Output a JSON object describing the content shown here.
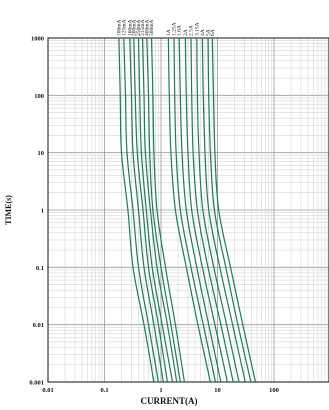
{
  "chart_data": {
    "type": "line",
    "title": "",
    "xlabel": "CURRENT(A)",
    "ylabel": "TIME(s)",
    "x_scale": "log",
    "y_scale": "log",
    "xlim": [
      0.01,
      1000
    ],
    "ylim": [
      0.001,
      1000
    ],
    "x_ticks": [
      "0.01",
      "0.1",
      "1",
      "10",
      "100"
    ],
    "y_ticks": [
      "0.001",
      "0.01",
      "0.1",
      "1",
      "10",
      "100",
      "1000"
    ],
    "grid": true,
    "line_color": "#1f7a5c",
    "series": [
      {
        "name": "100mA",
        "points": [
          [
            0.18,
            1000
          ],
          [
            0.19,
            100
          ],
          [
            0.2,
            10
          ],
          [
            0.26,
            1
          ],
          [
            0.32,
            0.1
          ],
          [
            0.5,
            0.01
          ],
          [
            0.75,
            0.001
          ]
        ]
      },
      {
        "name": "125mA",
        "points": [
          [
            0.22,
            1000
          ],
          [
            0.235,
            100
          ],
          [
            0.25,
            10
          ],
          [
            0.32,
            1
          ],
          [
            0.4,
            0.1
          ],
          [
            0.6,
            0.01
          ],
          [
            0.9,
            0.001
          ]
        ]
      },
      {
        "name": "160mA",
        "points": [
          [
            0.28,
            1000
          ],
          [
            0.3,
            100
          ],
          [
            0.32,
            10
          ],
          [
            0.4,
            1
          ],
          [
            0.5,
            0.1
          ],
          [
            0.75,
            0.01
          ],
          [
            1.1,
            0.001
          ]
        ]
      },
      {
        "name": "200mA",
        "points": [
          [
            0.33,
            1000
          ],
          [
            0.35,
            100
          ],
          [
            0.38,
            10
          ],
          [
            0.48,
            1
          ],
          [
            0.6,
            0.1
          ],
          [
            0.9,
            0.01
          ],
          [
            1.3,
            0.001
          ]
        ]
      },
      {
        "name": "250mA",
        "points": [
          [
            0.4,
            1000
          ],
          [
            0.42,
            100
          ],
          [
            0.45,
            10
          ],
          [
            0.55,
            1
          ],
          [
            0.7,
            0.1
          ],
          [
            1.05,
            0.01
          ],
          [
            1.6,
            0.001
          ]
        ]
      },
      {
        "name": "315mA",
        "points": [
          [
            0.47,
            1000
          ],
          [
            0.5,
            100
          ],
          [
            0.53,
            10
          ],
          [
            0.65,
            1
          ],
          [
            0.85,
            0.1
          ],
          [
            1.3,
            0.01
          ],
          [
            1.9,
            0.001
          ]
        ]
      },
      {
        "name": "400mA",
        "points": [
          [
            0.56,
            1000
          ],
          [
            0.6,
            100
          ],
          [
            0.63,
            10
          ],
          [
            0.72,
            1
          ],
          [
            1.0,
            0.1
          ],
          [
            1.5,
            0.01
          ],
          [
            2.2,
            0.001
          ]
        ]
      },
      {
        "name": "500mA",
        "points": [
          [
            0.68,
            1000
          ],
          [
            0.72,
            100
          ],
          [
            0.75,
            10
          ],
          [
            0.85,
            1
          ],
          [
            1.2,
            0.1
          ],
          [
            1.8,
            0.01
          ],
          [
            2.6,
            0.001
          ]
        ]
      },
      {
        "name": "1A",
        "points": [
          [
            1.35,
            1000
          ],
          [
            1.4,
            100
          ],
          [
            1.5,
            10
          ],
          [
            1.8,
            1
          ],
          [
            2.8,
            0.1
          ],
          [
            4.5,
            0.01
          ],
          [
            7.5,
            0.001
          ]
        ]
      },
      {
        "name": "1.25A",
        "points": [
          [
            1.7,
            1000
          ],
          [
            1.75,
            100
          ],
          [
            1.85,
            10
          ],
          [
            2.2,
            1
          ],
          [
            3.4,
            0.1
          ],
          [
            5.6,
            0.01
          ],
          [
            9.2,
            0.001
          ]
        ]
      },
      {
        "name": "1.6A",
        "points": [
          [
            2.1,
            1000
          ],
          [
            2.2,
            100
          ],
          [
            2.35,
            10
          ],
          [
            2.8,
            1
          ],
          [
            4.3,
            0.1
          ],
          [
            7.0,
            0.01
          ],
          [
            11.5,
            0.001
          ]
        ]
      },
      {
        "name": "2A",
        "points": [
          [
            2.7,
            1000
          ],
          [
            2.8,
            100
          ],
          [
            3.0,
            10
          ],
          [
            3.5,
            1
          ],
          [
            5.4,
            0.1
          ],
          [
            9.0,
            0.01
          ],
          [
            15,
            0.001
          ]
        ]
      },
      {
        "name": "2.5A",
        "points": [
          [
            3.4,
            1000
          ],
          [
            3.5,
            100
          ],
          [
            3.7,
            10
          ],
          [
            4.4,
            1
          ],
          [
            6.8,
            0.1
          ],
          [
            11.5,
            0.01
          ],
          [
            19,
            0.001
          ]
        ]
      },
      {
        "name": "3.15A",
        "points": [
          [
            4.3,
            1000
          ],
          [
            4.4,
            100
          ],
          [
            4.7,
            10
          ],
          [
            5.5,
            1
          ],
          [
            8.6,
            0.1
          ],
          [
            14.5,
            0.01
          ],
          [
            24,
            0.001
          ]
        ]
      },
      {
        "name": "4A",
        "points": [
          [
            5.4,
            1000
          ],
          [
            5.6,
            100
          ],
          [
            6.0,
            10
          ],
          [
            7.0,
            1
          ],
          [
            11,
            0.1
          ],
          [
            18.5,
            0.01
          ],
          [
            31,
            0.001
          ]
        ]
      },
      {
        "name": "5A",
        "points": [
          [
            6.8,
            1000
          ],
          [
            7.0,
            100
          ],
          [
            7.5,
            10
          ],
          [
            8.8,
            1
          ],
          [
            14,
            0.1
          ],
          [
            23,
            0.01
          ],
          [
            39,
            0.001
          ]
        ]
      },
      {
        "name": "6A",
        "points": [
          [
            8.1,
            1000
          ],
          [
            8.5,
            100
          ],
          [
            9.0,
            10
          ],
          [
            10.5,
            1
          ],
          [
            17,
            0.1
          ],
          [
            28,
            0.01
          ],
          [
            47,
            0.001
          ]
        ]
      }
    ]
  }
}
